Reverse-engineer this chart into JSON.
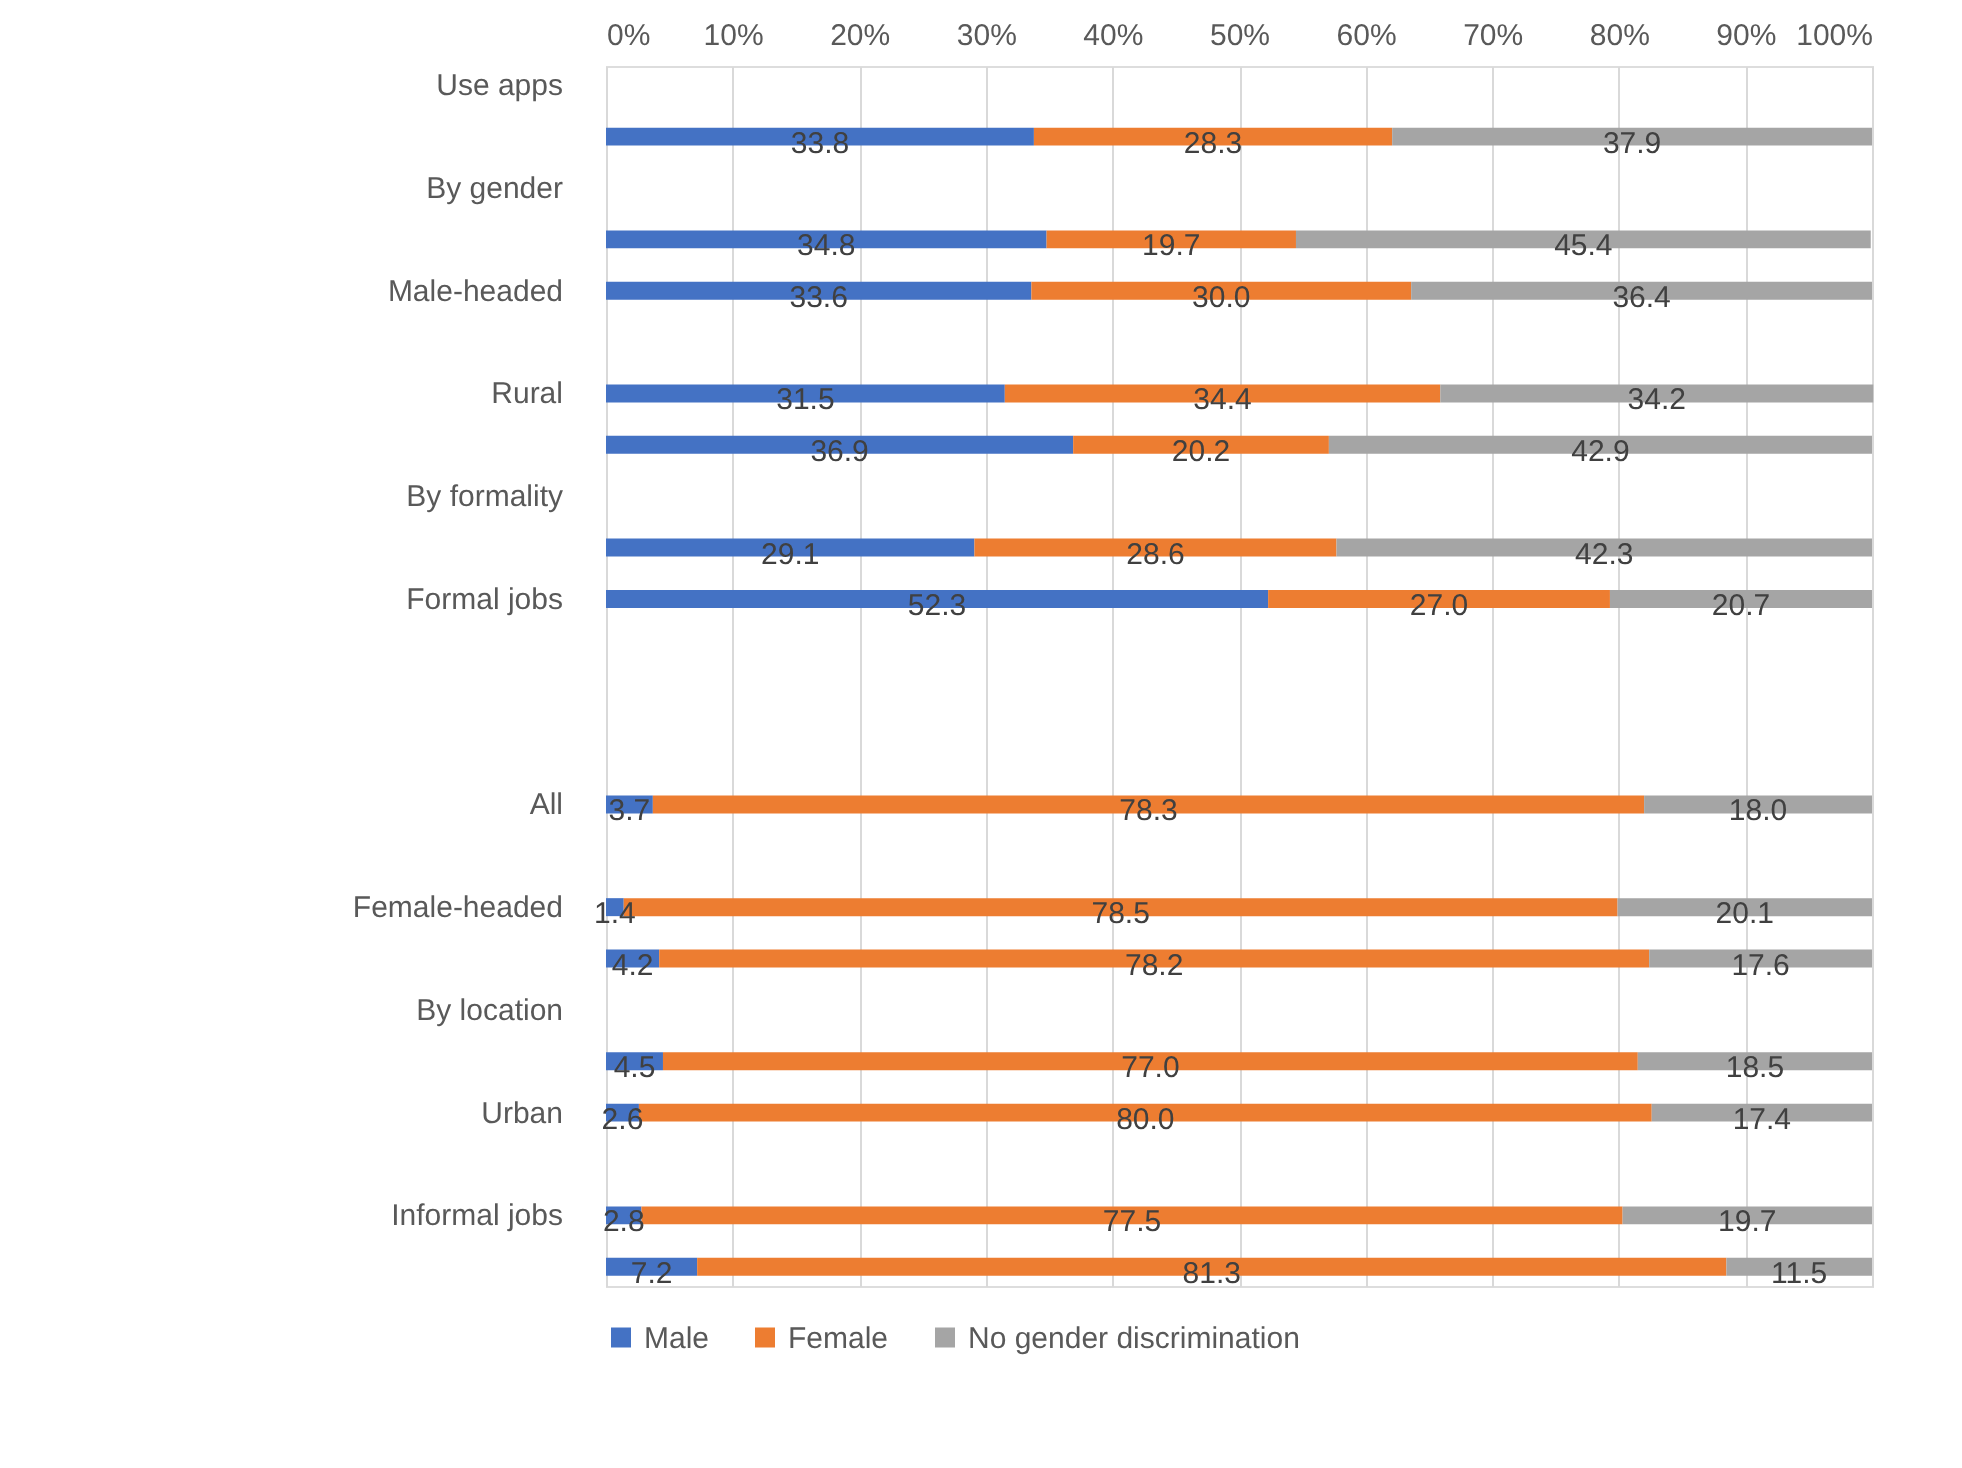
{
  "chart_data": {
    "type": "bar",
    "orientation": "horizontal",
    "stacked": true,
    "legend": "bottom",
    "grid": "x",
    "categories": [
      "Use apps",
      null,
      "By gender",
      null,
      "Male-headed",
      null,
      "Rural",
      null,
      "By formality",
      null,
      "Formal jobs",
      null,
      null,
      null,
      "All",
      null,
      "Female-headed",
      null,
      "By location",
      null,
      "Urban",
      null,
      "Informal jobs",
      null
    ],
    "series": [
      {
        "name": "Male",
        "color": "#4472c4",
        "values": [
          null,
          33.8,
          null,
          34.8,
          33.6,
          null,
          31.5,
          36.9,
          null,
          29.1,
          52.3,
          null,
          null,
          null,
          3.7,
          null,
          1.4,
          4.2,
          null,
          4.5,
          2.6,
          null,
          2.8,
          7.2
        ],
        "value_labels": [
          null,
          "33.8",
          null,
          "34.8",
          "33.6",
          null,
          "31.5",
          "36.9",
          null,
          "29.1",
          "52.3",
          null,
          null,
          null,
          "3.7",
          null,
          "1.4",
          "4.2",
          null,
          "4.5",
          "2.6",
          null,
          "2.8",
          "7.2"
        ]
      },
      {
        "name": "Female",
        "color": "#ed7d31",
        "values": [
          null,
          28.3,
          null,
          19.7,
          30.0,
          null,
          34.4,
          20.2,
          null,
          28.6,
          27.0,
          null,
          null,
          null,
          78.3,
          null,
          78.5,
          78.2,
          null,
          77.0,
          80.0,
          null,
          77.5,
          81.3
        ],
        "value_labels": [
          null,
          "28.3",
          null,
          "19.7",
          "30.0",
          null,
          "34.4",
          "20.2",
          null,
          "28.6",
          "27.0",
          null,
          null,
          null,
          "78.3",
          null,
          "78.5",
          "78.2",
          null,
          "77.0",
          "80.0",
          null,
          "77.5",
          "81.3"
        ]
      },
      {
        "name": "No gender discrimination",
        "color": "#a5a5a5",
        "values": [
          null,
          37.9,
          null,
          45.4,
          36.4,
          null,
          34.2,
          42.9,
          null,
          42.3,
          20.7,
          null,
          null,
          null,
          18.0,
          null,
          20.1,
          17.6,
          null,
          18.5,
          17.4,
          null,
          19.7,
          11.5
        ],
        "value_labels": [
          null,
          "37.9",
          null,
          "45.4",
          "36.4",
          null,
          "34.2",
          "42.9",
          null,
          "42.3",
          "20.7",
          null,
          null,
          null,
          "18.0",
          null,
          "20.1",
          "17.6",
          null,
          "18.5",
          "17.4",
          null,
          "19.7",
          "11.5"
        ]
      }
    ],
    "xlim": [
      0,
      100
    ],
    "xticks": [
      {
        "value": 0,
        "label": "0%"
      },
      {
        "value": 10,
        "label": "10%"
      },
      {
        "value": 20,
        "label": "20%"
      },
      {
        "value": 30,
        "label": "30%"
      },
      {
        "value": 40,
        "label": "40%"
      },
      {
        "value": 50,
        "label": "50%"
      },
      {
        "value": 60,
        "label": "60%"
      },
      {
        "value": 70,
        "label": "70%"
      },
      {
        "value": 80,
        "label": "80%"
      },
      {
        "value": 90,
        "label": "90%"
      },
      {
        "value": 100,
        "label": "100%"
      }
    ]
  }
}
